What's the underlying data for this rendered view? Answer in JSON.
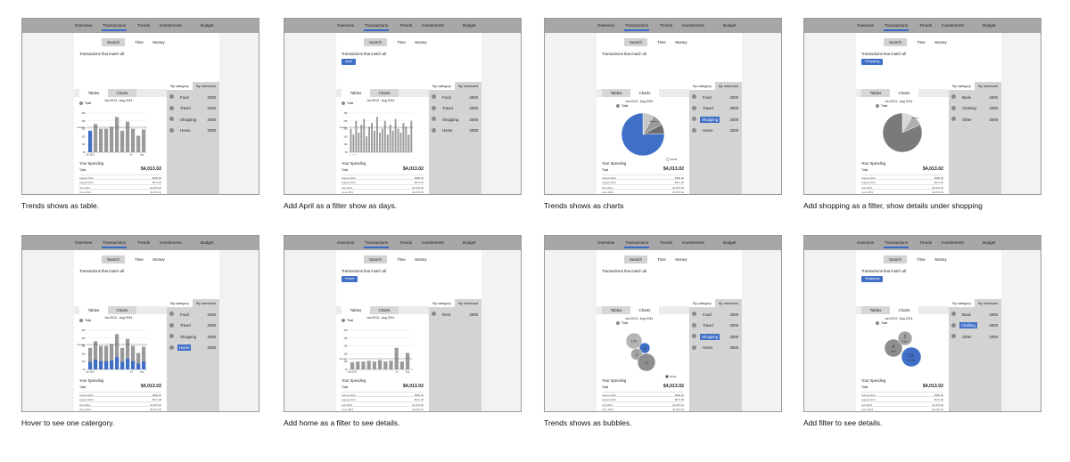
{
  "nav": [
    "Overview",
    "Transactions",
    "Trends",
    "Investments",
    "Budget"
  ],
  "search_tabs": [
    "Search",
    "Time",
    "Money"
  ],
  "match_all": "Transactions that match all",
  "view_tabs": [
    "Tables",
    "Charts"
  ],
  "side_tabs": [
    "By category",
    "By merchant"
  ],
  "legend_label": "Total",
  "date_range": "Jun 2013 - Aug 2014",
  "avg_label": "Average",
  "detail_label": "Detail",
  "spending": {
    "title": "Your Spending",
    "total_label": "Total",
    "total_amount": "$4,013.02",
    "rows": [
      {
        "month": "August 2014",
        "value": "$380.00"
      },
      {
        "month": "August 2014",
        "value": "$971.38"
      },
      {
        "month": "July 2013",
        "value": "$1,870.94"
      },
      {
        "month": "June 2013",
        "value": "$1,870.94"
      },
      {
        "month": "May 2013",
        "value": "$1,870.94"
      },
      {
        "month": "April 2013",
        "value": "$1,870.94"
      },
      {
        "month": "March 2013",
        "value": "$1,870.94"
      },
      {
        "month": "February 2013",
        "value": "$1,870.94"
      }
    ]
  },
  "categories_main": [
    {
      "label": "Food",
      "value": "2000"
    },
    {
      "label": "Travel",
      "value": "2000"
    },
    {
      "label": "Shopping",
      "value": "2000"
    },
    {
      "label": "Home",
      "value": "2000"
    }
  ],
  "categories_shopping": [
    {
      "label": "Book",
      "value": "2000"
    },
    {
      "label": "Clothing",
      "value": "2000"
    },
    {
      "label": "Other",
      "value": "2000"
    }
  ],
  "categories_home": [
    {
      "label": "Rent",
      "value": "2000"
    }
  ],
  "filters": {
    "april": "April",
    "shopping": "Shopping",
    "home": "Home"
  },
  "pie_labels": {
    "main": "Shopping",
    "shop": "Clothing"
  },
  "bubbles": {
    "main": [
      "120",
      "45",
      "10",
      "10"
    ],
    "detail": [
      {
        "num": "4",
        "label": "Book"
      },
      {
        "num": "2",
        "label": "Other"
      },
      {
        "num": "12",
        "label": "Clothing"
      }
    ]
  },
  "axis": {
    "y_ticks": [
      "300",
      "250",
      "200",
      "150",
      "100",
      "50"
    ],
    "x_months": [
      "Jun 2013",
      "Jul",
      "Aug"
    ],
    "x_days": [
      "1",
      "2",
      "3"
    ],
    "home_x": [
      "Aug 2013",
      "Jul",
      "Aug"
    ]
  },
  "captions": [
    "Trends shows as table.",
    "Add April as a filter  show as days.",
    "Trends shows as charts",
    "Add shopping as a filter, show details under shopping",
    "Hover to see one catergory.",
    "Add home as a filter to see details.",
    "Trends shows as bubbles.",
    "Add filter to see details."
  ],
  "colors": {
    "accent": "#3f6fc6",
    "nav_bg": "#a7a7a7",
    "bar": "#9a9a9a"
  }
}
